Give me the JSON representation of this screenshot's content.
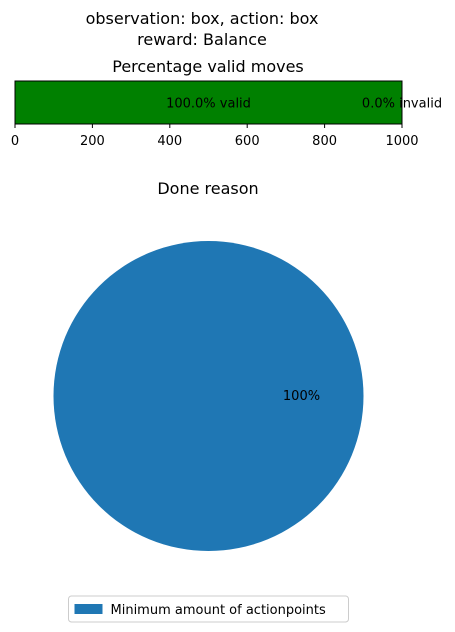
{
  "figure": {
    "suptitle_line1": "observation: box, action: box",
    "suptitle_line2": "reward: Balance"
  },
  "chart_data": [
    {
      "type": "bar",
      "orientation": "horizontal",
      "stacked": true,
      "title": "Percentage valid moves",
      "xlim": [
        0,
        1000
      ],
      "xticks": [
        0,
        200,
        400,
        600,
        800,
        1000
      ],
      "y_axis_visible": false,
      "grid": false,
      "series": [
        {
          "key": "valid",
          "value": 1000,
          "color": "#008000",
          "label": "100.0% valid"
        },
        {
          "key": "invalid",
          "value": 0,
          "color": "#ff0000",
          "label": "0.0% invalid"
        }
      ]
    },
    {
      "type": "pie",
      "title": "Done reason",
      "legend_position": "bottom-center",
      "slices": [
        {
          "label": "Minimum amount of actionpoints",
          "value": 100,
          "pct_label": "100%",
          "color": "#1f77b4"
        }
      ]
    }
  ]
}
